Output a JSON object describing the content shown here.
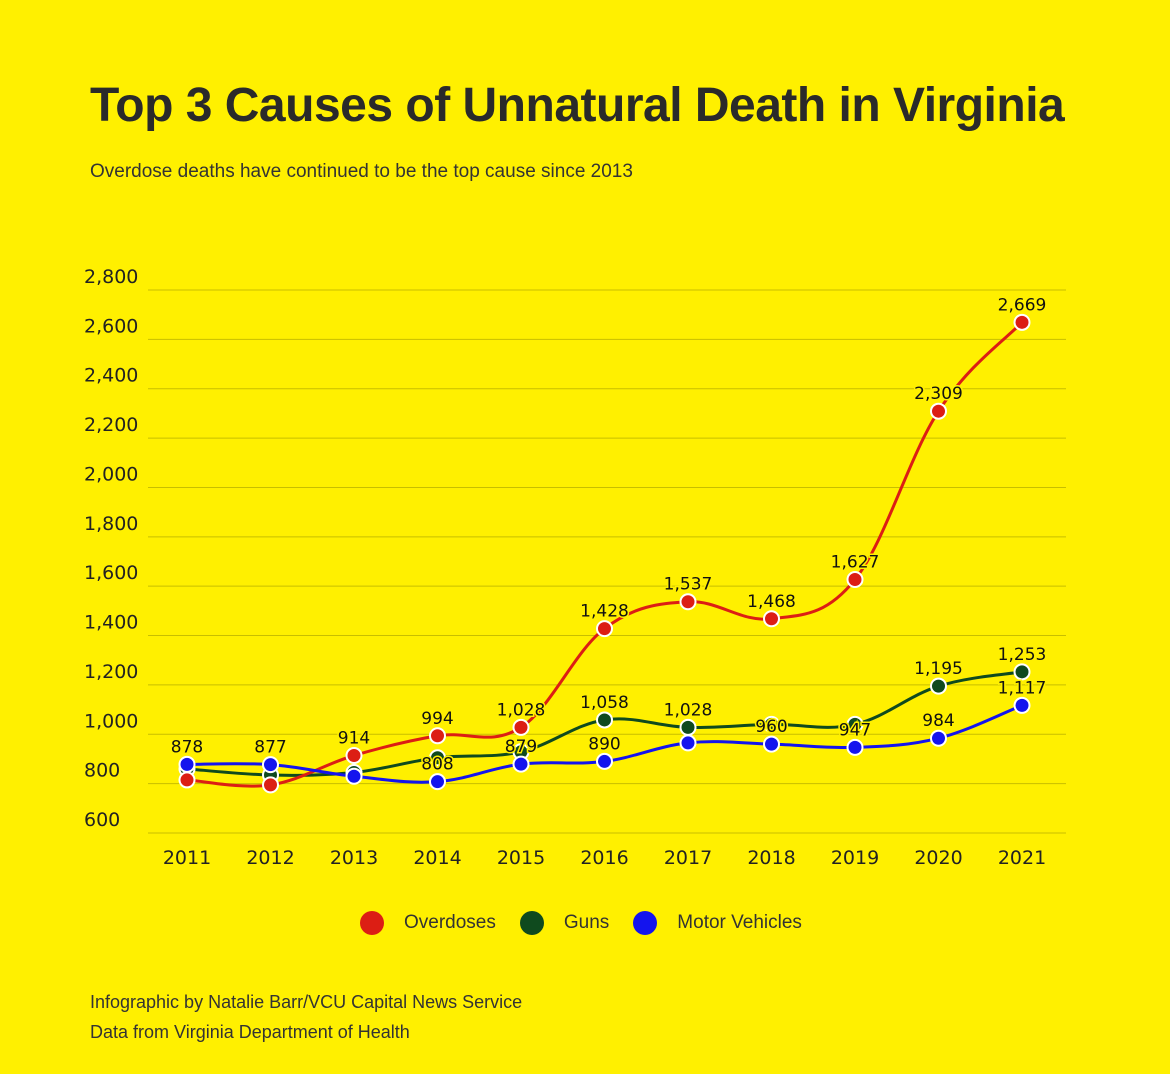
{
  "header": {
    "title": "Top 3 Causes of Unnatural Death in Virginia",
    "subtitle": "Overdose deaths have continued to be the top cause since 2013"
  },
  "footer": {
    "credit": "Infographic by Natalie Barr/VCU Capital News Service",
    "source": "Data from Virginia Department of Health"
  },
  "chart_data": {
    "type": "line",
    "title": "Top 3 Causes of Unnatural Death in Virginia",
    "subtitle": "Overdose deaths have continued to be the top cause since 2013",
    "xlabel": "",
    "ylabel": "",
    "categories": [
      "2011",
      "2012",
      "2013",
      "2014",
      "2015",
      "2016",
      "2017",
      "2018",
      "2019",
      "2020",
      "2021"
    ],
    "y_ticks": [
      "600",
      "800",
      "1,000",
      "1,200",
      "1,400",
      "1,600",
      "1,800",
      "2,000",
      "2,200",
      "2,400",
      "2,600",
      "2,800"
    ],
    "ylim": [
      600,
      2800
    ],
    "grid": true,
    "legend_position": "bottom-center",
    "series": [
      {
        "name": "Overdoses",
        "color": "#dc1e14",
        "values": [
          815,
          795,
          914,
          994,
          1028,
          1428,
          1537,
          1468,
          1627,
          2309,
          2669
        ],
        "labels": [
          "",
          "",
          "914",
          "994",
          "1,028",
          "1,428",
          "1,537",
          "1,468",
          "1,627",
          "2,309",
          "2,669"
        ]
      },
      {
        "name": "Guns",
        "color": "#0f4a1e",
        "values": [
          860,
          835,
          845,
          905,
          929,
          1058,
          1028,
          1040,
          1040,
          1195,
          1253
        ],
        "labels": [
          "",
          "",
          "",
          "",
          "",
          "1,058",
          "1,028",
          "",
          "",
          "1,195",
          "1,253"
        ]
      },
      {
        "name": "Motor Vehicles",
        "color": "#1414ee",
        "values": [
          878,
          877,
          830,
          808,
          879,
          890,
          965,
          960,
          947,
          984,
          1117
        ],
        "labels": [
          "878",
          "877",
          "",
          "808",
          "879",
          "890",
          "",
          "960",
          "947",
          "984",
          "1,117"
        ]
      }
    ]
  }
}
